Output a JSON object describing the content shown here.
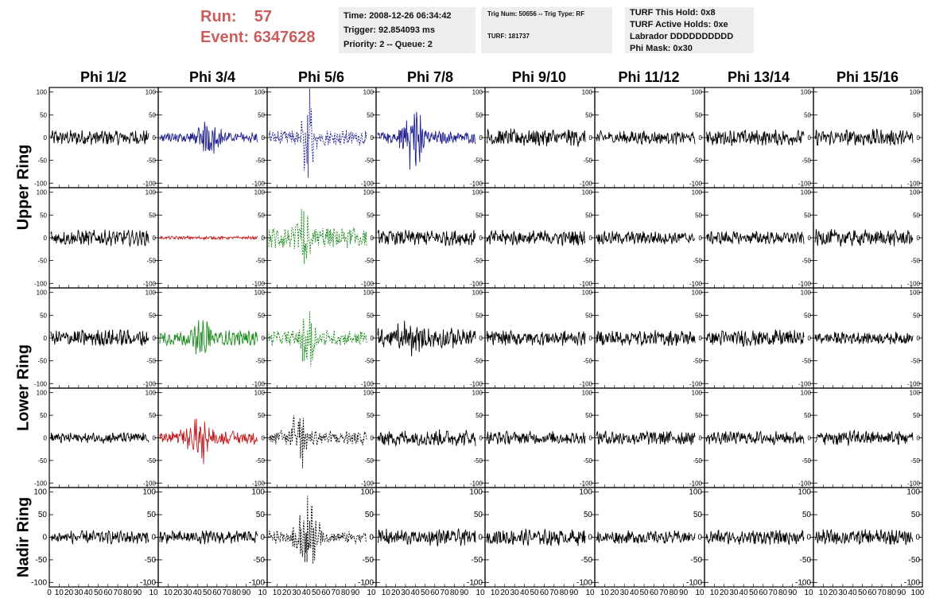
{
  "header": {
    "run_label": "Run:",
    "run_value": "57",
    "event_label": "Event:",
    "event_value": "6347628"
  },
  "info_time": {
    "time": "Time: 2008-12-26 06:34:42",
    "trigger": "Trigger: 92.854093 ms",
    "priority": "Priority: 2 -- Queue: 2"
  },
  "info_trig": {
    "trig": "Trig Num: 50656 -- Trig Type: RF",
    "turf": "TURF: 181737"
  },
  "info_turf": {
    "hold": "TURF This Hold: 0x8",
    "active": "TURF Active Holds: 0xe",
    "labrador": "Labrador DDDDDDDDDD",
    "phimask": "Phi Mask: 0x30"
  },
  "colors": {
    "black": "#000000",
    "blue": "#1f1f8f",
    "red": "#c02020",
    "green": "#1a8a1a",
    "header_red": "#cd5c5c",
    "info_bg": "#eeeeee"
  },
  "chart_data": {
    "type": "line",
    "columns": [
      "Phi 1/2",
      "Phi 3/4",
      "Phi 5/6",
      "Phi 7/8",
      "Phi 9/10",
      "Phi 11/12",
      "Phi 13/14",
      "Phi 15/16"
    ],
    "rings": [
      "Upper Ring",
      "Lower Ring",
      "Nadir Ring"
    ],
    "ylim": [
      -110,
      110
    ],
    "xlim": [
      0,
      100
    ],
    "y_ticks": [
      -100,
      -50,
      0,
      50,
      100
    ],
    "x_ticks": [
      0,
      10,
      20,
      30,
      40,
      50,
      60,
      70,
      80,
      90,
      100
    ],
    "x_tick_labels": [
      "0",
      "10",
      "20",
      "30",
      "40",
      "50",
      "60",
      "70",
      "80",
      "90",
      "10",
      "10",
      "20",
      "30",
      "40",
      "50",
      "60",
      "70",
      "80",
      "90",
      "10",
      "10",
      "20",
      "30",
      "40",
      "50",
      "60",
      "70",
      "80",
      "90",
      "10",
      "10",
      "20",
      "30",
      "40",
      "50",
      "60",
      "70",
      "80",
      "90",
      "10",
      "10",
      "20",
      "30",
      "40",
      "50",
      "60",
      "70",
      "80",
      "90",
      "10",
      "10",
      "20",
      "30",
      "40",
      "50",
      "60",
      "70",
      "80",
      "90",
      "10",
      "10",
      "20",
      "30",
      "40",
      "50",
      "60",
      "70",
      "80",
      "90",
      "10",
      "10",
      "20",
      "30",
      "40",
      "50",
      "60",
      "70",
      "80",
      "90",
      "100"
    ],
    "panels": [
      [
        {
          "color": "black",
          "style": "solid",
          "amp": 14,
          "pulse": 0
        },
        {
          "color": "blue",
          "style": "solid",
          "amp": 10,
          "pulse": 28,
          "center": 50
        },
        {
          "color": "blue",
          "style": "dash",
          "amp": 14,
          "pulse": 95,
          "center": 40
        },
        {
          "color": "blue",
          "style": "solid",
          "amp": 12,
          "pulse": 60,
          "center": 35
        },
        {
          "color": "black",
          "style": "solid",
          "amp": 16,
          "pulse": 0
        },
        {
          "color": "black",
          "style": "solid",
          "amp": 12,
          "pulse": 0
        },
        {
          "color": "black",
          "style": "solid",
          "amp": 14,
          "pulse": 0
        },
        {
          "color": "black",
          "style": "solid",
          "amp": 15,
          "pulse": 0
        }
      ],
      [
        {
          "color": "black",
          "style": "solid",
          "amp": 14,
          "pulse": 0
        },
        {
          "color": "red",
          "style": "solid",
          "amp": 3,
          "pulse": 0
        },
        {
          "color": "green",
          "style": "dash",
          "amp": 20,
          "pulse": 75,
          "center": 35
        },
        {
          "color": "black",
          "style": "solid",
          "amp": 14,
          "pulse": 0
        },
        {
          "color": "black",
          "style": "solid",
          "amp": 14,
          "pulse": 0
        },
        {
          "color": "black",
          "style": "solid",
          "amp": 12,
          "pulse": 0
        },
        {
          "color": "black",
          "style": "solid",
          "amp": 12,
          "pulse": 0
        },
        {
          "color": "black",
          "style": "solid",
          "amp": 15,
          "pulse": 0
        }
      ],
      [
        {
          "color": "black",
          "style": "solid",
          "amp": 15,
          "pulse": 0
        },
        {
          "color": "green",
          "style": "solid",
          "amp": 14,
          "pulse": 28,
          "center": 45
        },
        {
          "color": "green",
          "style": "dash",
          "amp": 14,
          "pulse": 80,
          "center": 40
        },
        {
          "color": "black",
          "style": "solid",
          "amp": 18,
          "pulse": 25,
          "center": 30
        },
        {
          "color": "black",
          "style": "solid",
          "amp": 14,
          "pulse": 0
        },
        {
          "color": "black",
          "style": "solid",
          "amp": 14,
          "pulse": 0
        },
        {
          "color": "black",
          "style": "solid",
          "amp": 15,
          "pulse": 0
        },
        {
          "color": "black",
          "style": "solid",
          "amp": 11,
          "pulse": 0
        }
      ],
      [
        {
          "color": "black",
          "style": "solid",
          "amp": 10,
          "pulse": 0
        },
        {
          "color": "red",
          "style": "solid",
          "amp": 12,
          "pulse": 45,
          "center": 40
        },
        {
          "color": "black",
          "style": "dash",
          "amp": 14,
          "pulse": 80,
          "center": 30
        },
        {
          "color": "black",
          "style": "solid",
          "amp": 15,
          "pulse": 0
        },
        {
          "color": "black",
          "style": "solid",
          "amp": 12,
          "pulse": 0
        },
        {
          "color": "black",
          "style": "solid",
          "amp": 14,
          "pulse": 0
        },
        {
          "color": "black",
          "style": "solid",
          "amp": 12,
          "pulse": 0
        },
        {
          "color": "black",
          "style": "solid",
          "amp": 14,
          "pulse": 0
        }
      ],
      [
        {
          "color": "black",
          "style": "solid",
          "amp": 12,
          "pulse": 0
        },
        {
          "color": "black",
          "style": "solid",
          "amp": 12,
          "pulse": 0
        },
        {
          "color": "black",
          "style": "dash",
          "amp": 12,
          "pulse": 55,
          "center": 40
        },
        {
          "color": "black",
          "style": "solid",
          "amp": 15,
          "pulse": 0
        },
        {
          "color": "black",
          "style": "solid",
          "amp": 15,
          "pulse": 0
        },
        {
          "color": "black",
          "style": "solid",
          "amp": 12,
          "pulse": 0
        },
        {
          "color": "black",
          "style": "solid",
          "amp": 13,
          "pulse": 0
        },
        {
          "color": "black",
          "style": "solid",
          "amp": 14,
          "pulse": 0
        }
      ]
    ]
  }
}
